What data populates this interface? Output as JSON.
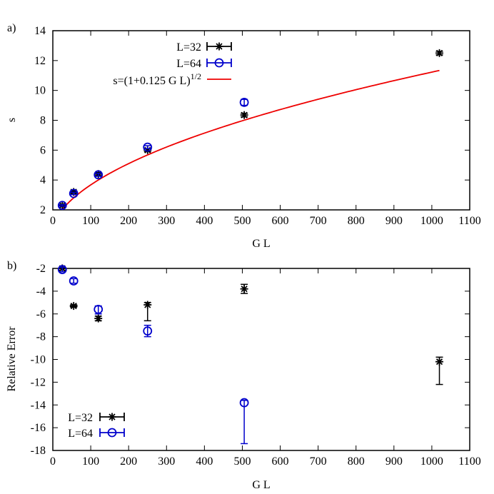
{
  "chart_data": [
    {
      "panel_label": "a)",
      "type": "scatter",
      "xlabel": "G L",
      "ylabel": "s",
      "xlim": [
        0,
        1100
      ],
      "ylim": [
        2,
        14
      ],
      "x_ticks": [
        0,
        100,
        200,
        300,
        400,
        500,
        600,
        700,
        800,
        900,
        1000,
        1100
      ],
      "y_ticks": [
        2,
        4,
        6,
        8,
        10,
        12,
        14
      ],
      "legend_position": "top-center",
      "series": [
        {
          "name": "L=32",
          "marker": "asterisk",
          "color": "#000000",
          "points": [
            {
              "x": 25,
              "y": 2.3,
              "err": 0.05
            },
            {
              "x": 55,
              "y": 3.2,
              "err": 0.08
            },
            {
              "x": 120,
              "y": 4.4,
              "err": 0.1
            },
            {
              "x": 250,
              "y": 6.0,
              "err": 0.1
            },
            {
              "x": 505,
              "y": 8.35,
              "err": 0.12
            },
            {
              "x": 1020,
              "y": 12.5,
              "err": 0.12
            }
          ]
        },
        {
          "name": "L=64",
          "marker": "circle",
          "color": "#0000cc",
          "points": [
            {
              "x": 25,
              "y": 2.3,
              "err": 0.05
            },
            {
              "x": 55,
              "y": 3.1,
              "err": 0.08
            },
            {
              "x": 120,
              "y": 4.35,
              "err": 0.1
            },
            {
              "x": 250,
              "y": 6.2,
              "err": 0.1
            },
            {
              "x": 505,
              "y": 9.2,
              "err": 0.2
            }
          ]
        }
      ],
      "fit": {
        "label": "s=(1+0.125 G L)",
        "exponent": "1/2",
        "color": "#ee0000",
        "a": 0.125,
        "x_range": [
          25,
          1020
        ]
      }
    },
    {
      "panel_label": "b)",
      "type": "scatter",
      "xlabel": "G L",
      "ylabel": "Relative Error",
      "xlim": [
        0,
        1100
      ],
      "ylim": [
        -18,
        -2
      ],
      "x_ticks": [
        0,
        100,
        200,
        300,
        400,
        500,
        600,
        700,
        800,
        900,
        1000,
        1100
      ],
      "y_ticks": [
        -2,
        -4,
        -6,
        -8,
        -10,
        -12,
        -14,
        -16,
        -18
      ],
      "legend_position": "bottom-left",
      "series": [
        {
          "name": "L=32",
          "marker": "asterisk",
          "color": "#000000",
          "points": [
            {
              "x": 25,
              "y": -2.0,
              "err_low": -2.15,
              "err_high": -1.9
            },
            {
              "x": 55,
              "y": -5.3,
              "err_low": -5.4,
              "err_high": -5.2
            },
            {
              "x": 120,
              "y": -6.4,
              "err_low": -6.6,
              "err_high": -6.2
            },
            {
              "x": 250,
              "y": -5.2,
              "err_low": -6.6,
              "err_high": -5.0
            },
            {
              "x": 505,
              "y": -3.8,
              "err_low": -4.2,
              "err_high": -3.4
            },
            {
              "x": 1020,
              "y": -10.2,
              "err_low": -12.2,
              "err_high": -9.8
            }
          ]
        },
        {
          "name": "L=64",
          "marker": "circle",
          "color": "#0000cc",
          "points": [
            {
              "x": 25,
              "y": -2.1,
              "err_low": -2.3,
              "err_high": -1.9
            },
            {
              "x": 55,
              "y": -3.1,
              "err_low": -3.3,
              "err_high": -2.9
            },
            {
              "x": 120,
              "y": -5.6,
              "err_low": -6.0,
              "err_high": -5.3
            },
            {
              "x": 250,
              "y": -7.5,
              "err_low": -8.0,
              "err_high": -7.0
            },
            {
              "x": 505,
              "y": -13.8,
              "err_low": -17.4,
              "err_high": -13.6
            }
          ]
        }
      ]
    }
  ]
}
